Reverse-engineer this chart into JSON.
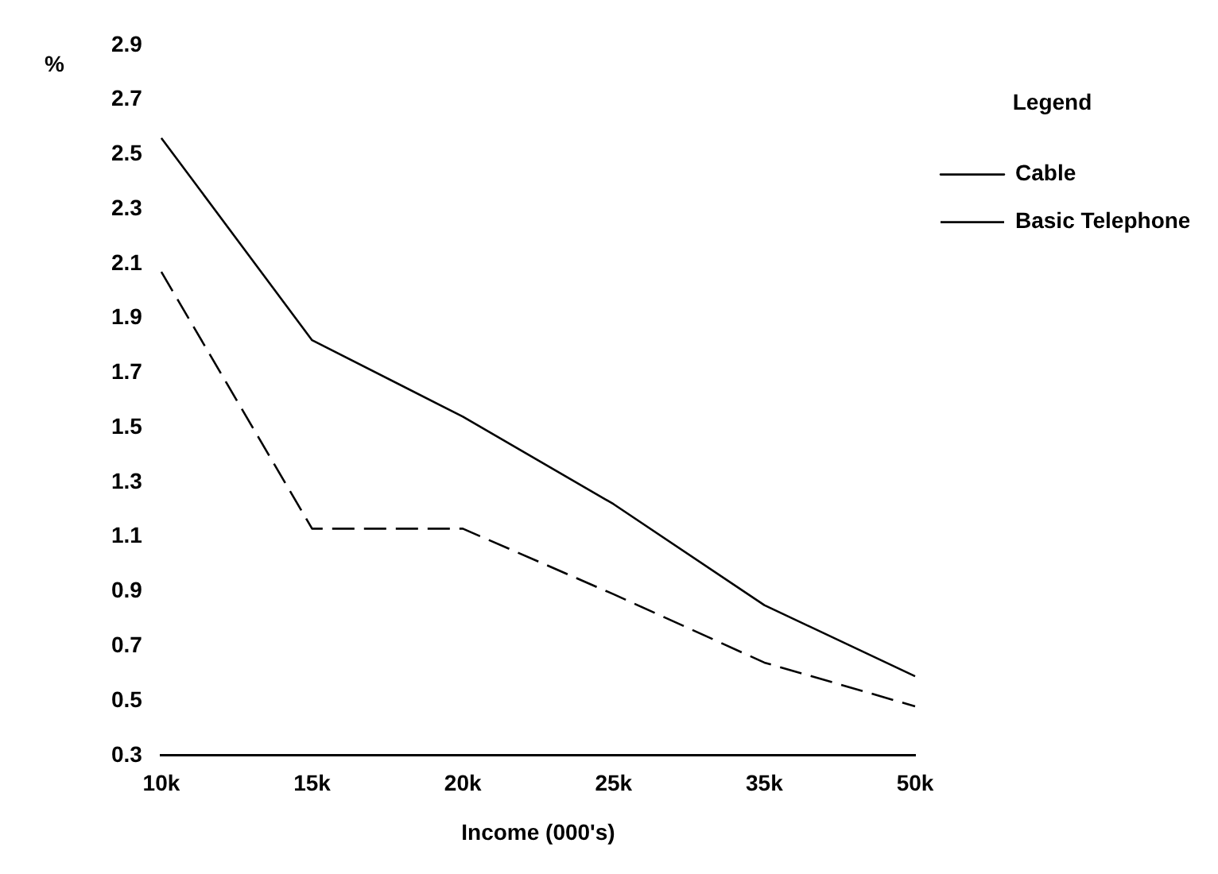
{
  "chart_data": {
    "type": "line",
    "xlabel": "Income (000's)",
    "ylabel": "%",
    "legend_title": "Legend",
    "categories": [
      "10k",
      "15k",
      "20k",
      "25k",
      "35k",
      "50k"
    ],
    "series": [
      {
        "name": "Cable",
        "color": "#000000",
        "line_style": "solid",
        "values": [
          2.56,
          1.82,
          1.54,
          1.22,
          0.85,
          0.59
        ]
      },
      {
        "name": "Basic Telephone",
        "color": "#000000",
        "line_style": "dashed",
        "values": [
          2.07,
          1.13,
          1.13,
          0.89,
          0.64,
          0.48
        ]
      }
    ],
    "ylim": [
      0.3,
      2.9
    ],
    "yticks": [
      0.3,
      0.5,
      0.7,
      0.9,
      1.1,
      1.3,
      1.5,
      1.7,
      1.9,
      2.1,
      2.3,
      2.5,
      2.7,
      2.9
    ],
    "grid": false,
    "legend": "right",
    "marker": "none"
  }
}
